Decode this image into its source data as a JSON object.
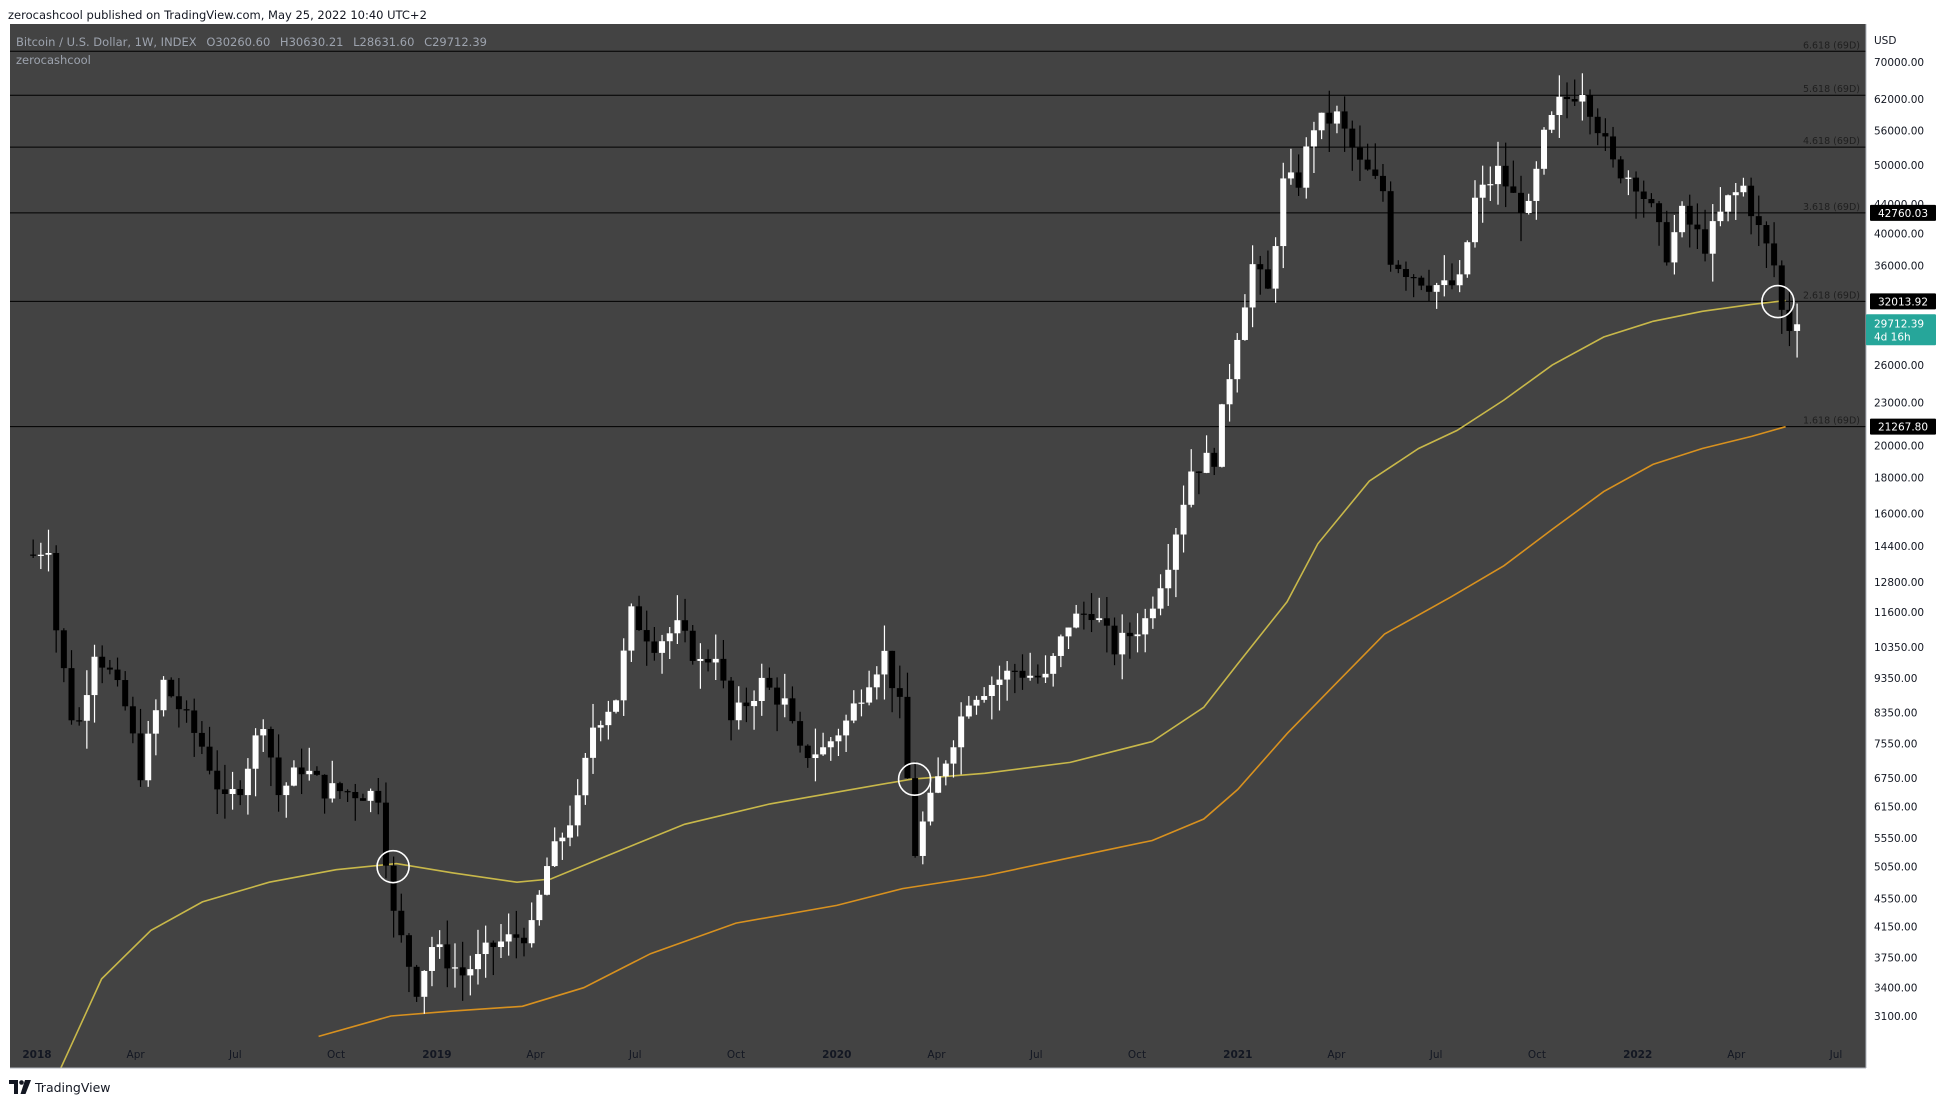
{
  "header": {
    "published": "zerocashcool published on TradingView.com, May 25, 2022 10:40 UTC+2"
  },
  "legend": {
    "symbol": "Bitcoin / U.S. Dollar, 1W, INDEX",
    "open_label": "O",
    "open": "30260.60",
    "high_label": "H",
    "high": "30630.21",
    "low_label": "L",
    "low": "28631.60",
    "close_label": "C",
    "close": "29712.39",
    "indicator": "zerocashcool"
  },
  "footer": {
    "brand": "TradingView"
  },
  "colors": {
    "chart_bg": "#434343",
    "axis_bg": "#ffffff",
    "up_candle": "#ffffff",
    "down_candle": "#000000",
    "ma_short": "#c8b84a",
    "ma_long": "#d8911f",
    "fib_line": "#000000",
    "price_badge": "#26a69a"
  },
  "chart_data": {
    "type": "candlestick",
    "scale": "log",
    "currency_label": "USD",
    "y_ticks": [
      "3100.00",
      "3400.00",
      "3750.00",
      "4150.00",
      "4550.00",
      "5050.00",
      "5550.00",
      "6150.00",
      "6750.00",
      "7550.00",
      "8350.00",
      "9350.00",
      "10350.00",
      "11600.00",
      "12800.00",
      "14400.00",
      "16000.00",
      "18000.00",
      "20000.00",
      "23000.00",
      "26000.00",
      "30000.00",
      "36000.00",
      "40000.00",
      "44000.00",
      "50000.00",
      "56000.00",
      "62000.00",
      "70000.00"
    ],
    "y_tick_values": [
      3100,
      3400,
      3750,
      4150,
      4550,
      5050,
      5550,
      6150,
      6750,
      7550,
      8350,
      9350,
      10350,
      11600,
      12800,
      14400,
      16000,
      18000,
      20000,
      23000,
      26000,
      30000,
      36000,
      40000,
      44000,
      50000,
      56000,
      62000,
      70000
    ],
    "x_ticks": [
      {
        "label": "2018",
        "date": "2018-01-01",
        "bold": true
      },
      {
        "label": "Apr",
        "date": "2018-04-01"
      },
      {
        "label": "Jul",
        "date": "2018-07-01"
      },
      {
        "label": "Oct",
        "date": "2018-10-01"
      },
      {
        "label": "2019",
        "date": "2019-01-01",
        "bold": true
      },
      {
        "label": "Apr",
        "date": "2019-04-01"
      },
      {
        "label": "Jul",
        "date": "2019-07-01"
      },
      {
        "label": "Oct",
        "date": "2019-10-01"
      },
      {
        "label": "2020",
        "date": "2020-01-01",
        "bold": true
      },
      {
        "label": "Apr",
        "date": "2020-04-01"
      },
      {
        "label": "Jul",
        "date": "2020-07-01"
      },
      {
        "label": "Oct",
        "date": "2020-10-01"
      },
      {
        "label": "2021",
        "date": "2021-01-01",
        "bold": true
      },
      {
        "label": "Apr",
        "date": "2021-04-01"
      },
      {
        "label": "Jul",
        "date": "2021-07-01"
      },
      {
        "label": "Oct",
        "date": "2021-10-01"
      },
      {
        "label": "2022",
        "date": "2022-01-01",
        "bold": true
      },
      {
        "label": "Apr",
        "date": "2022-04-01"
      },
      {
        "label": "Jul",
        "date": "2022-07-01"
      }
    ],
    "fib_levels": [
      {
        "label": "6.618 (69D)",
        "value": 72500,
        "badge": ""
      },
      {
        "label": "5.618 (69D)",
        "value": 62800,
        "badge": ""
      },
      {
        "label": "4.618 (69D)",
        "value": 53000,
        "badge": ""
      },
      {
        "label": "3.618 (69D)",
        "value": 42760.03,
        "badge": "42760.03"
      },
      {
        "label": "2.618 (69D)",
        "value": 32013.92,
        "badge": "32013.92"
      },
      {
        "label": "1.618 (69D)",
        "value": 21267.8,
        "badge": "21267.80"
      }
    ],
    "current_price": {
      "value": 29712.39,
      "label": "29712.39",
      "countdown": "4d 16h"
    },
    "candle_path": [
      [
        "2017-12-25",
        14000
      ],
      [
        "2018-01-08",
        14500
      ],
      [
        "2018-01-15",
        11000
      ],
      [
        "2018-01-29",
        8300
      ],
      [
        "2018-02-05",
        8100
      ],
      [
        "2018-02-19",
        10300
      ],
      [
        "2018-03-05",
        9500
      ],
      [
        "2018-03-19",
        8500
      ],
      [
        "2018-04-02",
        6900
      ],
      [
        "2018-04-23",
        9200
      ],
      [
        "2018-05-07",
        8500
      ],
      [
        "2018-05-28",
        7500
      ],
      [
        "2018-06-18",
        6200
      ],
      [
        "2018-07-02",
        6600
      ],
      [
        "2018-07-23",
        8200
      ],
      [
        "2018-08-06",
        6400
      ],
      [
        "2018-08-27",
        7000
      ],
      [
        "2018-09-17",
        6500
      ],
      [
        "2018-10-08",
        6450
      ],
      [
        "2018-11-05",
        6400
      ],
      [
        "2018-11-19",
        4300
      ],
      [
        "2018-12-10",
        3400
      ],
      [
        "2018-12-24",
        3900
      ],
      [
        "2019-01-21",
        3550
      ],
      [
        "2019-02-18",
        3900
      ],
      [
        "2019-03-25",
        4100
      ],
      [
        "2019-04-08",
        5050
      ],
      [
        "2019-05-06",
        6200
      ],
      [
        "2019-05-20",
        8000
      ],
      [
        "2019-06-10",
        8800
      ],
      [
        "2019-06-24",
        11500
      ],
      [
        "2019-07-15",
        10500
      ],
      [
        "2019-08-05",
        11000
      ],
      [
        "2019-08-26",
        9800
      ],
      [
        "2019-09-09",
        10200
      ],
      [
        "2019-09-23",
        8100
      ],
      [
        "2019-10-21",
        9200
      ],
      [
        "2019-11-11",
        8600
      ],
      [
        "2019-11-25",
        7300
      ],
      [
        "2019-12-16",
        7400
      ],
      [
        "2020-01-06",
        8100
      ],
      [
        "2020-01-27",
        9400
      ],
      [
        "2020-02-10",
        10100
      ],
      [
        "2020-02-24",
        8500
      ],
      [
        "2020-03-09",
        5300
      ],
      [
        "2020-03-16",
        5800
      ],
      [
        "2020-04-06",
        7200
      ],
      [
        "2020-04-27",
        8800
      ],
      [
        "2020-05-18",
        9200
      ],
      [
        "2020-06-08",
        9600
      ],
      [
        "2020-07-06",
        9300
      ],
      [
        "2020-07-27",
        11200
      ],
      [
        "2020-08-17",
        11700
      ],
      [
        "2020-09-07",
        10300
      ],
      [
        "2020-10-05",
        11300
      ],
      [
        "2020-10-26",
        13800
      ],
      [
        "2020-11-16",
        18500
      ],
      [
        "2020-12-07",
        19300
      ],
      [
        "2020-12-28",
        29000
      ],
      [
        "2021-01-11",
        36000
      ],
      [
        "2021-01-25",
        33000
      ],
      [
        "2021-02-08",
        47000
      ],
      [
        "2021-02-22",
        47500
      ],
      [
        "2021-03-08",
        57000
      ],
      [
        "2021-03-29",
        58500
      ],
      [
        "2021-04-19",
        50000
      ],
      [
        "2021-05-10",
        46000
      ],
      [
        "2021-05-17",
        37000
      ],
      [
        "2021-05-31",
        35500
      ],
      [
        "2021-06-21",
        34000
      ],
      [
        "2021-07-05",
        33500
      ],
      [
        "2021-07-19",
        34000
      ],
      [
        "2021-08-02",
        44500
      ],
      [
        "2021-08-23",
        49000
      ],
      [
        "2021-09-06",
        45000
      ],
      [
        "2021-09-20",
        43000
      ],
      [
        "2021-10-04",
        54500
      ],
      [
        "2021-10-18",
        61000
      ],
      [
        "2021-11-08",
        64500
      ],
      [
        "2021-11-22",
        57000
      ],
      [
        "2021-12-06",
        50000
      ],
      [
        "2021-12-27",
        47500
      ],
      [
        "2022-01-10",
        43000
      ],
      [
        "2022-01-24",
        37500
      ],
      [
        "2022-02-07",
        42500
      ],
      [
        "2022-02-28",
        38500
      ],
      [
        "2022-03-21",
        44500
      ],
      [
        "2022-04-04",
        46500
      ],
      [
        "2022-04-18",
        40500
      ],
      [
        "2022-05-02",
        36000
      ],
      [
        "2022-05-09",
        31000
      ],
      [
        "2022-05-16",
        29500
      ],
      [
        "2022-05-23",
        29712.39
      ]
    ],
    "ma_short": [
      [
        "2018-01-22",
        2600
      ],
      [
        "2018-03-01",
        3500
      ],
      [
        "2018-04-15",
        4100
      ],
      [
        "2018-06-01",
        4500
      ],
      [
        "2018-08-01",
        4800
      ],
      [
        "2018-10-01",
        5000
      ],
      [
        "2018-11-25",
        5100
      ],
      [
        "2019-01-15",
        4950
      ],
      [
        "2019-03-15",
        4800
      ],
      [
        "2019-04-15",
        4850
      ],
      [
        "2019-06-01",
        5200
      ],
      [
        "2019-08-15",
        5800
      ],
      [
        "2019-11-01",
        6200
      ],
      [
        "2020-01-15",
        6500
      ],
      [
        "2020-03-09",
        6720
      ],
      [
        "2020-05-15",
        6850
      ],
      [
        "2020-08-01",
        7100
      ],
      [
        "2020-10-15",
        7600
      ],
      [
        "2020-12-01",
        8500
      ],
      [
        "2021-01-01",
        9800
      ],
      [
        "2021-02-15",
        12000
      ],
      [
        "2021-03-15",
        14500
      ],
      [
        "2021-05-01",
        17800
      ],
      [
        "2021-06-15",
        19800
      ],
      [
        "2021-07-20",
        21000
      ],
      [
        "2021-09-01",
        23200
      ],
      [
        "2021-10-15",
        26000
      ],
      [
        "2021-12-01",
        28500
      ],
      [
        "2022-01-15",
        30000
      ],
      [
        "2022-03-01",
        31000
      ],
      [
        "2022-04-15",
        31700
      ],
      [
        "2022-05-16",
        32100
      ]
    ],
    "ma_long": [
      [
        "2018-09-15",
        2900
      ],
      [
        "2018-11-20",
        3100
      ],
      [
        "2019-01-15",
        3150
      ],
      [
        "2019-03-20",
        3200
      ],
      [
        "2019-05-15",
        3400
      ],
      [
        "2019-07-15",
        3800
      ],
      [
        "2019-10-01",
        4200
      ],
      [
        "2020-01-01",
        4450
      ],
      [
        "2020-03-01",
        4700
      ],
      [
        "2020-05-15",
        4900
      ],
      [
        "2020-08-01",
        5200
      ],
      [
        "2020-10-15",
        5500
      ],
      [
        "2020-12-01",
        5900
      ],
      [
        "2021-01-01",
        6500
      ],
      [
        "2021-02-15",
        7800
      ],
      [
        "2021-04-01",
        9200
      ],
      [
        "2021-05-15",
        10800
      ],
      [
        "2021-07-15",
        12200
      ],
      [
        "2021-09-01",
        13500
      ],
      [
        "2021-10-15",
        15200
      ],
      [
        "2021-12-01",
        17200
      ],
      [
        "2022-01-15",
        18800
      ],
      [
        "2022-03-01",
        19800
      ],
      [
        "2022-04-15",
        20600
      ],
      [
        "2022-05-16",
        21260
      ]
    ],
    "highlights": [
      {
        "date": "2018-11-22",
        "value": 5050
      },
      {
        "date": "2020-03-12",
        "value": 6720
      },
      {
        "date": "2022-05-09",
        "value": 32000
      }
    ],
    "grid": false
  }
}
